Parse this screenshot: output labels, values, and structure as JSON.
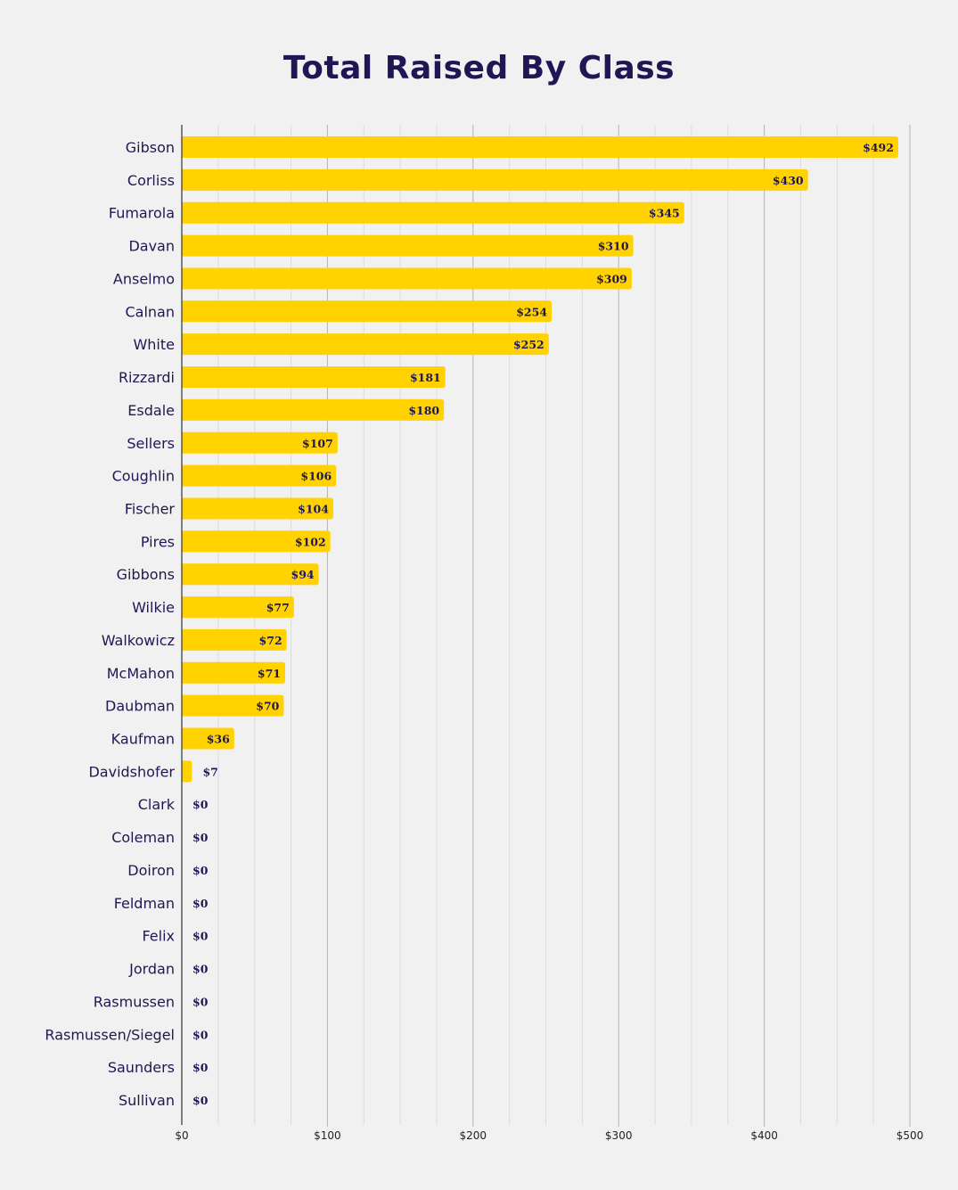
{
  "chart_data": {
    "type": "bar",
    "orientation": "horizontal",
    "title": "Total Raised By Class",
    "xlabel": "",
    "ylabel": "",
    "xlim": [
      0,
      500
    ],
    "grid": true,
    "bar_color": "#ffd200",
    "text_color": "#1f1754",
    "categories": [
      "Gibson",
      "Corliss",
      "Fumarola",
      "Davan",
      "Anselmo",
      "Calnan",
      "White",
      "Rizzardi",
      "Esdale",
      "Sellers",
      "Coughlin",
      "Fischer",
      "Pires",
      "Gibbons",
      "Wilkie",
      "Walkowicz",
      "McMahon",
      "Daubman",
      "Kaufman",
      "Davidshofer",
      "Clark",
      "Coleman",
      "Doiron",
      "Feldman",
      "Felix",
      "Jordan",
      "Rasmussen",
      "Rasmussen/Siegel",
      "Saunders",
      "Sullivan"
    ],
    "values": [
      492,
      430,
      345,
      310,
      309,
      254,
      252,
      181,
      180,
      107,
      106,
      104,
      102,
      94,
      77,
      72,
      71,
      70,
      36,
      7,
      0,
      0,
      0,
      0,
      0,
      0,
      0,
      0,
      0,
      0
    ],
    "value_labels": [
      "$492",
      "$430",
      "$345",
      "$310",
      "$309",
      "$254",
      "$252",
      "$181",
      "$180",
      "$107",
      "$106",
      "$104",
      "$102",
      "$94",
      "$77",
      "$72",
      "$71",
      "$70",
      "$36",
      "$7",
      "$0",
      "$0",
      "$0",
      "$0",
      "$0",
      "$0",
      "$0",
      "$0",
      "$0",
      "$0"
    ],
    "x_ticks": [
      0,
      100,
      200,
      300,
      400,
      500
    ],
    "x_tick_labels": [
      "$0",
      "$100",
      "$200",
      "$300",
      "$400",
      "$500"
    ]
  }
}
